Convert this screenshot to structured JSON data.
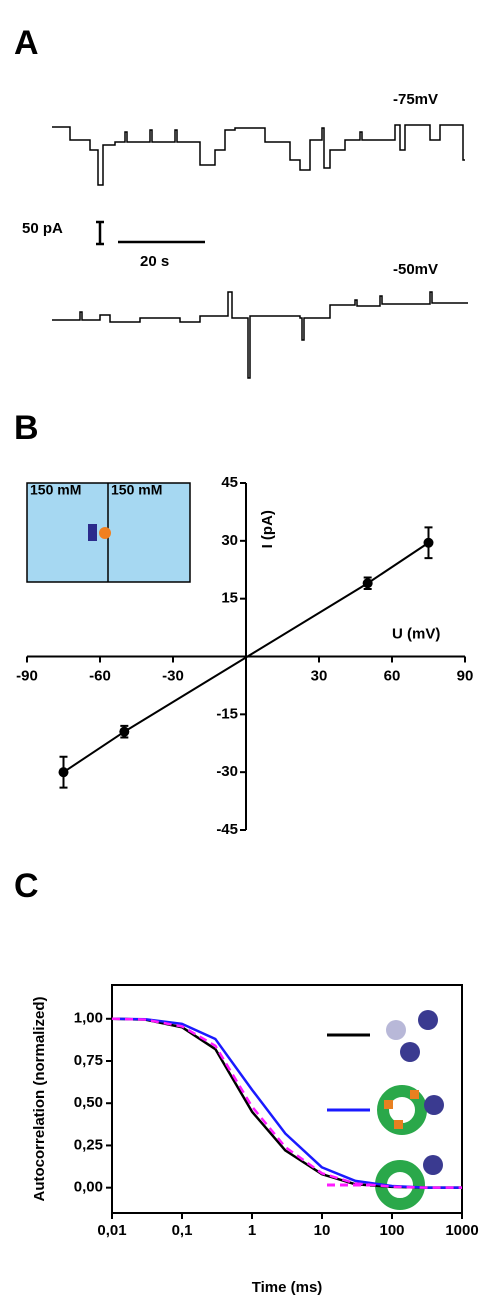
{
  "panel_a": {
    "label": "A",
    "trace_labels": [
      "-75mV",
      "-50mV"
    ],
    "scale_current": "50 pA",
    "scale_time": "20 s"
  },
  "chart_data": [
    {
      "type": "scatter",
      "panel": "B",
      "xlabel": "U (mV)",
      "ylabel": "I (pA)",
      "inset_labels": [
        "150 mM",
        "150 mM"
      ],
      "x": [
        -75,
        -50,
        50,
        75
      ],
      "series": [
        {
          "color": "#000000",
          "values": [
            -30,
            -19.5,
            19,
            29.5
          ],
          "errors": [
            4,
            1.5,
            1.5,
            4
          ]
        }
      ],
      "xlim": [
        -90,
        90
      ],
      "xticks": [
        -90,
        -60,
        -30,
        30,
        60,
        90
      ],
      "ylim": [
        -45,
        45
      ],
      "yticks": [
        -45,
        -30,
        -15,
        15,
        30,
        45
      ]
    },
    {
      "type": "line",
      "panel": "C",
      "xlabel": "Time (ms)",
      "ylabel": "Autocorrelation (normalized)",
      "log_x": true,
      "x": [
        0.01,
        0.03,
        0.1,
        0.3,
        1,
        3,
        10,
        30,
        100,
        300,
        1000
      ],
      "series": [
        {
          "color": "#000000",
          "dash": false,
          "values": [
            1.0,
            0.995,
            0.95,
            0.82,
            0.45,
            0.22,
            0.08,
            0.02,
            0.005,
            0,
            0
          ]
        },
        {
          "color": "#1a1aff",
          "dash": false,
          "values": [
            1.0,
            0.997,
            0.97,
            0.88,
            0.58,
            0.32,
            0.12,
            0.04,
            0.01,
            0,
            0
          ]
        },
        {
          "color": "#ff1aff",
          "dash": true,
          "values": [
            1.0,
            0.995,
            0.955,
            0.84,
            0.48,
            0.24,
            0.085,
            0.025,
            0.006,
            0,
            0
          ]
        }
      ],
      "xlim": [
        0.01,
        1000
      ],
      "xticks": [
        {
          "value": 0.01,
          "label": "0,01"
        },
        {
          "value": 0.1,
          "label": "0,1"
        },
        1,
        10,
        100,
        1000
      ],
      "ylim": [
        -0.15,
        1.2
      ],
      "yticks": [
        {
          "value": 0,
          "label": "0,00"
        },
        {
          "value": 0.25,
          "label": "0,25"
        },
        {
          "value": 0.5,
          "label": "0,50"
        },
        {
          "value": 0.75,
          "label": "0,75"
        },
        {
          "value": 1,
          "label": "1,00"
        }
      ]
    }
  ]
}
